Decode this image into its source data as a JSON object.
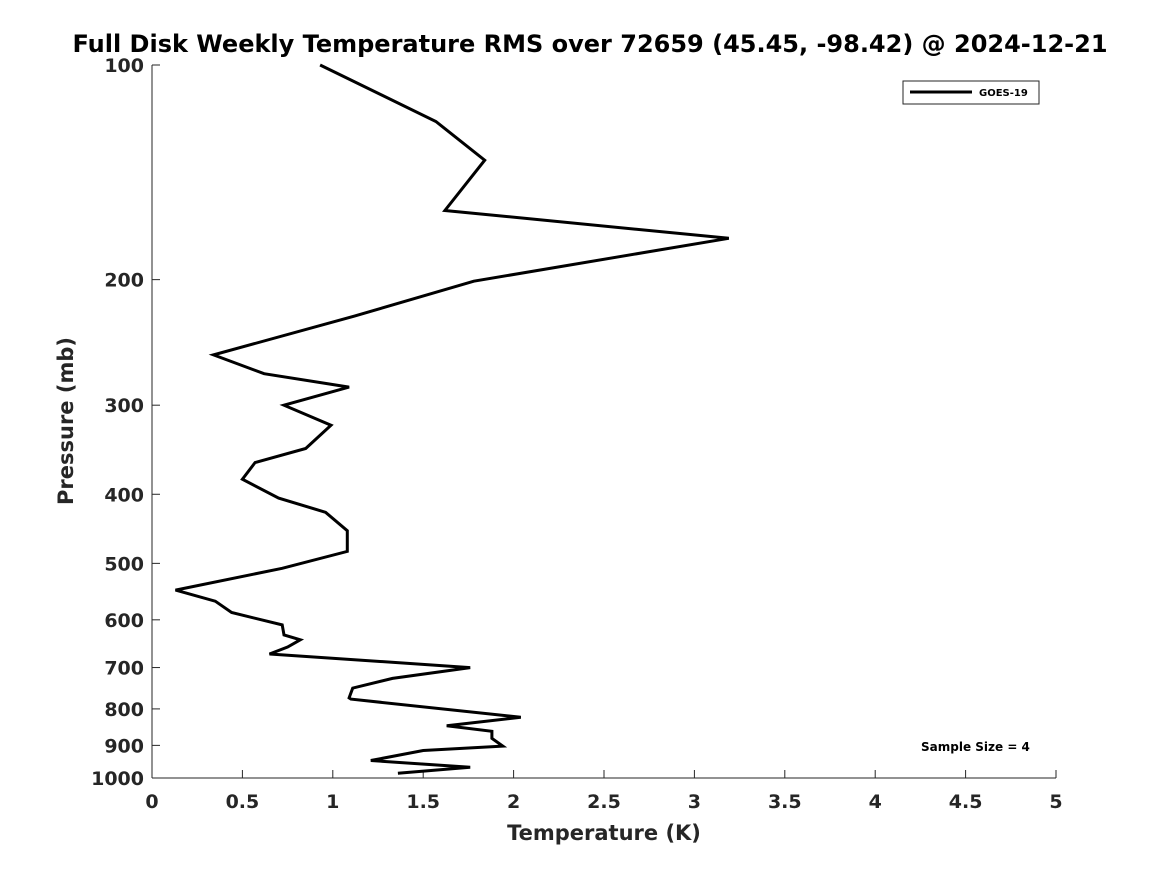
{
  "chart_data": {
    "type": "line",
    "title": "Full Disk Weekly Temperature RMS over 72659 (45.45, -98.42) @ 2024-12-21",
    "xlabel": "Temperature (K)",
    "ylabel": "Pressure (mb)",
    "xlim": [
      0,
      5
    ],
    "ylim": [
      100,
      1000
    ],
    "y_scale": "log",
    "y_direction": "reversed",
    "x_ticks": [
      "0",
      "0.5",
      "1",
      "1.5",
      "2",
      "2.5",
      "3",
      "3.5",
      "4",
      "4.5",
      "5"
    ],
    "y_ticks": [
      "100",
      "200",
      "300",
      "400",
      "500",
      "600",
      "700",
      "800",
      "900",
      "1000"
    ],
    "grid": false,
    "legend_position": "top-right",
    "annotation": "Sample Size = 4",
    "series": [
      {
        "name": "GOES-19",
        "color": "#000000",
        "x": [
          0.93,
          1.57,
          1.84,
          1.62,
          3.19,
          1.78,
          1.12,
          0.34,
          0.62,
          1.09,
          0.73,
          0.99,
          0.85,
          0.57,
          0.5,
          0.7,
          0.96,
          1.08,
          1.08,
          0.72,
          0.13,
          0.35,
          0.44,
          0.72,
          0.73,
          0.82,
          0.75,
          0.65,
          1.76,
          1.33,
          1.11,
          1.09,
          1.1,
          2.04,
          1.63,
          1.88,
          1.88,
          1.94,
          1.5,
          1.21,
          1.76,
          1.36
        ],
        "y": [
          100,
          120,
          136,
          160,
          175,
          201,
          225,
          255,
          271,
          283,
          300,
          320,
          345,
          361,
          381,
          405,
          424,
          450,
          481,
          508,
          545,
          565,
          586,
          610,
          630,
          640,
          655,
          670,
          700,
          725,
          748,
          772,
          775,
          822,
          845,
          860,
          880,
          902,
          915,
          945,
          966,
          985
        ]
      }
    ]
  }
}
